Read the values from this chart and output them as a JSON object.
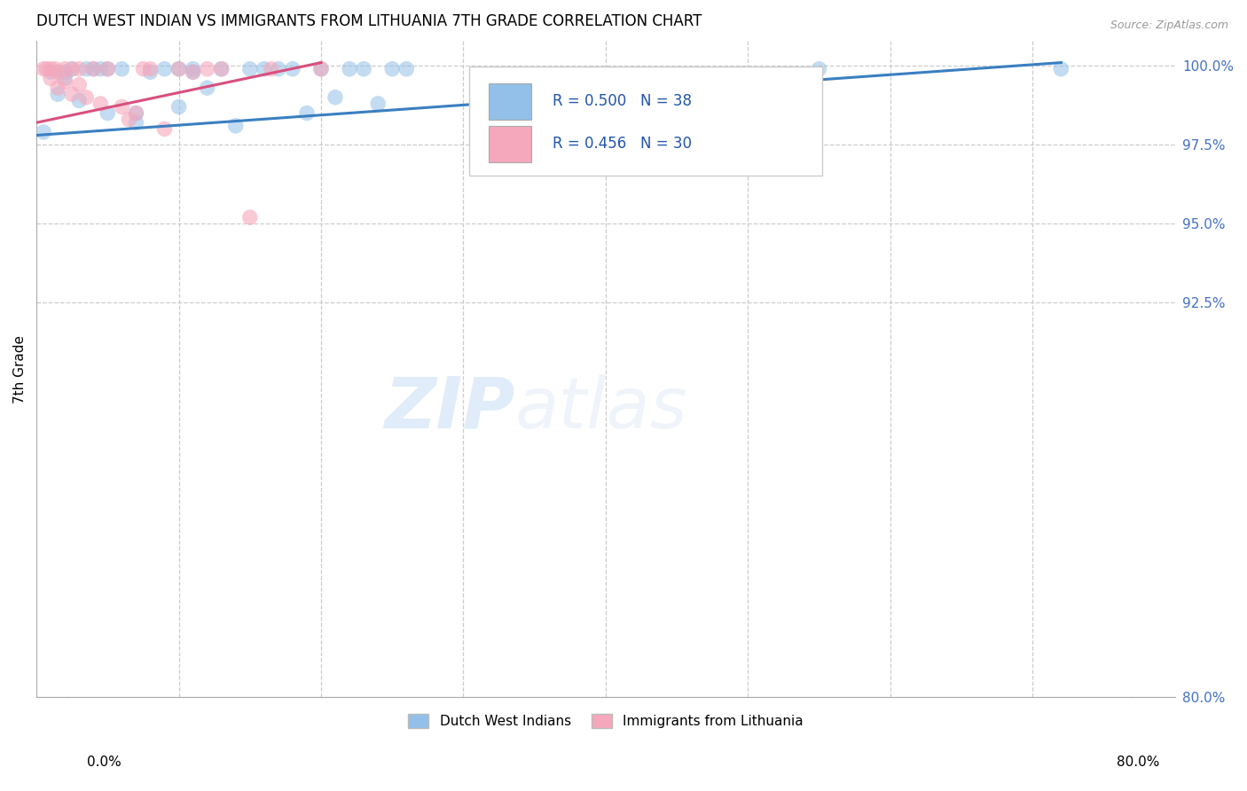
{
  "title": "DUTCH WEST INDIAN VS IMMIGRANTS FROM LITHUANIA 7TH GRADE CORRELATION CHART",
  "source": "Source: ZipAtlas.com",
  "ylabel": "7th Grade",
  "ytick_values": [
    0.8,
    0.925,
    0.95,
    0.975,
    1.0
  ],
  "ytick_labels": [
    "80.0%",
    "92.5%",
    "95.0%",
    "97.5%",
    "100.0%"
  ],
  "xmin": 0.0,
  "xmax": 0.8,
  "ymin": 0.8,
  "ymax": 1.008,
  "legend_blue_label": "Dutch West Indians",
  "legend_pink_label": "Immigrants from Lithuania",
  "R_blue": 0.5,
  "N_blue": 38,
  "R_pink": 0.456,
  "N_pink": 30,
  "blue_color": "#92c0e8",
  "pink_color": "#f5a8bc",
  "blue_line_color": "#3a7fc1",
  "pink_line_color": "#d94f7e",
  "watermark_zip": "ZIP",
  "watermark_atlas": "atlas",
  "blue_scatter_x": [
    0.005,
    0.01,
    0.015,
    0.02,
    0.02,
    0.025,
    0.03,
    0.035,
    0.04,
    0.045,
    0.05,
    0.05,
    0.06,
    0.07,
    0.07,
    0.08,
    0.09,
    0.1,
    0.1,
    0.11,
    0.11,
    0.12,
    0.13,
    0.14,
    0.15,
    0.16,
    0.17,
    0.18,
    0.19,
    0.2,
    0.21,
    0.22,
    0.23,
    0.24,
    0.25,
    0.26,
    0.55,
    0.72
  ],
  "blue_scatter_y": [
    0.979,
    0.998,
    0.991,
    0.998,
    0.996,
    0.999,
    0.989,
    0.999,
    0.999,
    0.999,
    0.999,
    0.985,
    0.999,
    0.985,
    0.982,
    0.998,
    0.999,
    0.999,
    0.987,
    0.999,
    0.998,
    0.993,
    0.999,
    0.981,
    0.999,
    0.999,
    0.999,
    0.999,
    0.985,
    0.999,
    0.99,
    0.999,
    0.999,
    0.988,
    0.999,
    0.999,
    0.999,
    0.999
  ],
  "pink_scatter_x": [
    0.005,
    0.007,
    0.01,
    0.01,
    0.013,
    0.015,
    0.015,
    0.02,
    0.02,
    0.025,
    0.025,
    0.03,
    0.03,
    0.035,
    0.04,
    0.045,
    0.05,
    0.06,
    0.065,
    0.07,
    0.075,
    0.08,
    0.09,
    0.1,
    0.11,
    0.12,
    0.13,
    0.15,
    0.165,
    0.2
  ],
  "pink_scatter_y": [
    0.999,
    0.999,
    0.999,
    0.996,
    0.999,
    0.998,
    0.993,
    0.999,
    0.995,
    0.999,
    0.991,
    0.999,
    0.994,
    0.99,
    0.999,
    0.988,
    0.999,
    0.987,
    0.983,
    0.985,
    0.999,
    0.999,
    0.98,
    0.999,
    0.998,
    0.999,
    0.999,
    0.952,
    0.999,
    0.999
  ],
  "blue_line_x": [
    0.0,
    0.72
  ],
  "blue_line_y": [
    0.978,
    1.001
  ],
  "pink_line_x": [
    0.0,
    0.2
  ],
  "pink_line_y": [
    0.982,
    1.001
  ],
  "x_grid": [
    0.1,
    0.2,
    0.3,
    0.4,
    0.5,
    0.6,
    0.7
  ]
}
